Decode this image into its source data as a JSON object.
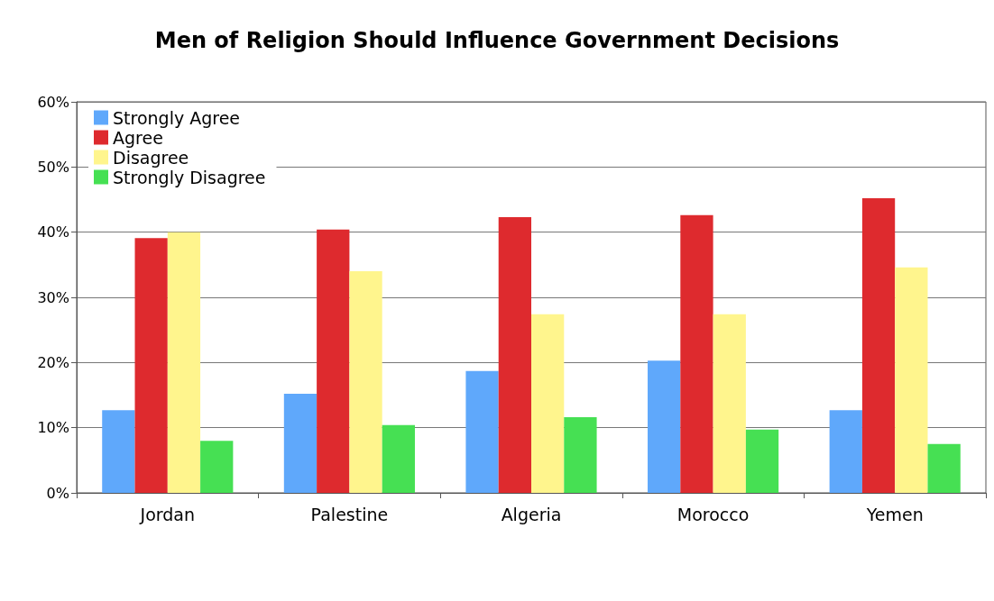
{
  "chart_data": {
    "type": "bar",
    "title": "Men of Religion Should Influence Government Decisions",
    "categories": [
      "Jordan",
      "Palestine",
      "Algeria",
      "Morocco",
      "Yemen"
    ],
    "series": [
      {
        "name": "Strongly Agree",
        "color": "#5fa8fb",
        "values": [
          12.7,
          15.2,
          18.7,
          20.3,
          12.7
        ]
      },
      {
        "name": "Agree",
        "color": "#de2a2e",
        "values": [
          39.1,
          40.4,
          42.3,
          42.6,
          45.2
        ]
      },
      {
        "name": "Disagree",
        "color": "#fff58d",
        "values": [
          40.0,
          34.0,
          27.4,
          27.4,
          34.6
        ]
      },
      {
        "name": "Strongly Disagree",
        "color": "#46e053",
        "values": [
          8.0,
          10.4,
          11.6,
          9.7,
          7.5
        ]
      }
    ],
    "ylim": [
      0,
      60
    ],
    "yticks": [
      {
        "value": 0,
        "label": "0%"
      },
      {
        "value": 10,
        "label": "10%"
      },
      {
        "value": 20,
        "label": "20%"
      },
      {
        "value": 30,
        "label": "30%"
      },
      {
        "value": 40,
        "label": "40%"
      },
      {
        "value": 50,
        "label": "50%"
      },
      {
        "value": 60,
        "label": "60%"
      }
    ],
    "grid": "y",
    "legend": "top left"
  }
}
